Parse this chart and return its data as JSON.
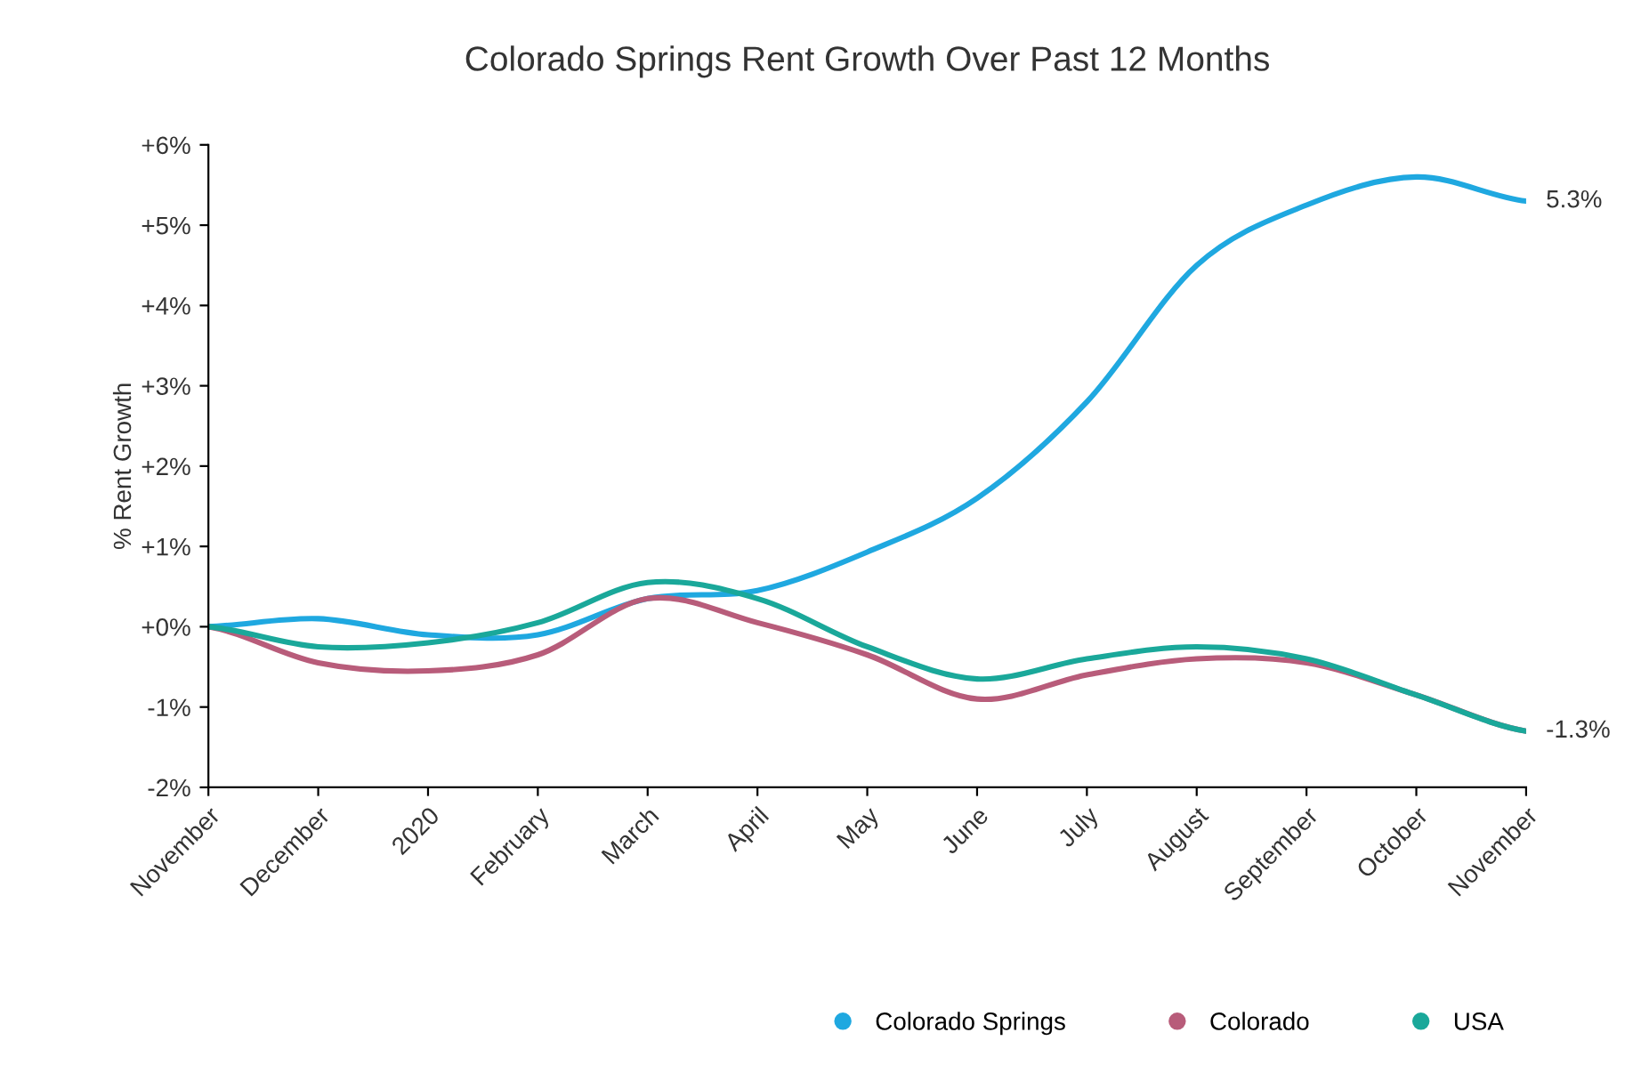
{
  "chart_data": {
    "type": "line",
    "title": "Colorado Springs Rent Growth Over Past 12 Months",
    "ylabel": "% Rent Growth",
    "categories": [
      "November",
      "December",
      "2020",
      "February",
      "March",
      "April",
      "May",
      "June",
      "July",
      "August",
      "September",
      "October",
      "November"
    ],
    "series": [
      {
        "name": "Colorado Springs",
        "color": "#1fa8e0",
        "values": [
          0,
          0.1,
          -0.1,
          -0.1,
          0.35,
          0.45,
          0.93,
          1.6,
          2.8,
          4.5,
          5.25,
          5.6,
          5.3
        ],
        "value_labels": [
          null,
          null,
          null,
          null,
          null,
          null,
          null,
          null,
          null,
          null,
          null,
          null,
          "5.3%"
        ]
      },
      {
        "name": "Colorado",
        "color": "#b85c7a",
        "values": [
          0,
          -0.45,
          -0.55,
          -0.35,
          0.35,
          0.05,
          -0.35,
          -0.9,
          -0.6,
          -0.4,
          -0.45,
          -0.85,
          -1.3
        ],
        "value_labels": [
          null,
          null,
          null,
          null,
          null,
          null,
          null,
          null,
          null,
          null,
          null,
          null,
          "-1.3%"
        ]
      },
      {
        "name": "USA",
        "color": "#1aa89a",
        "values": [
          0,
          -0.25,
          -0.2,
          0.05,
          0.55,
          0.35,
          -0.25,
          -0.65,
          -0.4,
          -0.25,
          -0.4,
          -0.85,
          -1.3
        ]
      }
    ],
    "ylim": [
      -2,
      6
    ],
    "yticks": [
      {
        "value": -2,
        "label": "-2%"
      },
      {
        "value": -1,
        "label": "-1%"
      },
      {
        "value": 0,
        "label": "+0%"
      },
      {
        "value": 1,
        "label": "+1%"
      },
      {
        "value": 2,
        "label": "+2%"
      },
      {
        "value": 3,
        "label": "+3%"
      },
      {
        "value": 4,
        "label": "+4%"
      },
      {
        "value": 5,
        "label": "+5%"
      },
      {
        "value": 6,
        "label": "+6%"
      }
    ],
    "grid": false,
    "legend": "bottom",
    "marker": "none",
    "line_style": "solid"
  }
}
